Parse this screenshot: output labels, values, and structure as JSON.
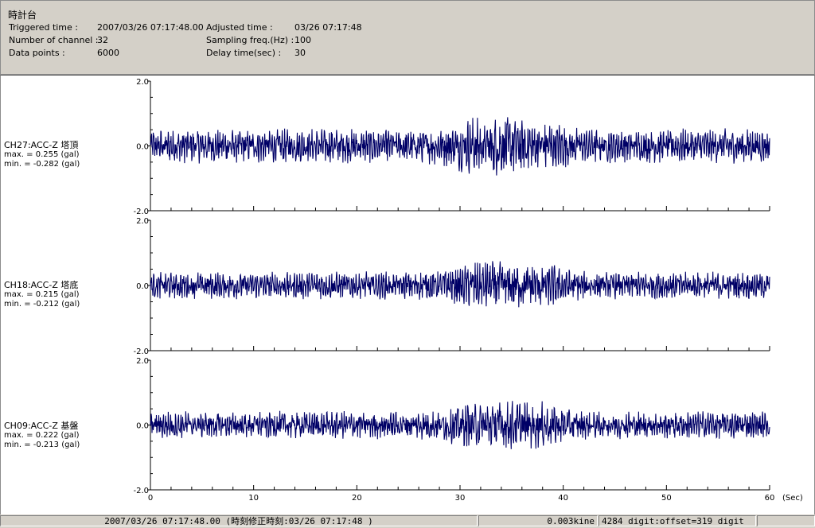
{
  "header": {
    "title": "時計台",
    "fields": [
      {
        "label": "Triggered time :",
        "value": "2007/03/26 07:17:48.00"
      },
      {
        "label": "Number of channel :",
        "value": "32"
      },
      {
        "label": "Data points :",
        "value": "6000"
      },
      {
        "label": "Adjusted time :",
        "value": "03/26 07:17:48"
      },
      {
        "label": "Sampling freq.(Hz) :",
        "value": "100"
      },
      {
        "label": "Delay time(sec) :",
        "value": "30"
      }
    ]
  },
  "channels": [
    {
      "name": "CH27:ACC-Z 塔頂",
      "max": "max. = 0.255 (gal)",
      "min": "min. = -0.282 (gal)"
    },
    {
      "name": "CH18:ACC-Z 塔底",
      "max": "max. = 0.215 (gal)",
      "min": "min. = -0.212 (gal)"
    },
    {
      "name": "CH09:ACC-Z 基盤",
      "max": "max. = 0.222 (gal)",
      "min": "min. = -0.213 (gal)"
    }
  ],
  "status_bar": {
    "time": "2007/03/26 07:17:48.00 (時刻修正時刻:03/26 07:17:48 )",
    "scale": "0.003kine",
    "digit": "4284 digit:offset=319 digit"
  },
  "chart_data": {
    "type": "line",
    "x_unit": "(Sec)",
    "xlim": [
      0,
      60
    ],
    "x_ticks": [
      "0",
      "10",
      "20",
      "30",
      "40",
      "50",
      "60"
    ],
    "ylim": [
      -2.0,
      2.0
    ],
    "y_ticks": [
      "2.0",
      "0.0",
      "-2.0"
    ],
    "line_color": "#000066",
    "series": [
      {
        "name": "CH27:ACC-Z 塔頂",
        "max": 0.255,
        "min": -0.282
      },
      {
        "name": "CH18:ACC-Z 塔底",
        "max": 0.215,
        "min": -0.212
      },
      {
        "name": "CH09:ACC-Z 基盤",
        "max": 0.222,
        "min": -0.213
      }
    ]
  }
}
